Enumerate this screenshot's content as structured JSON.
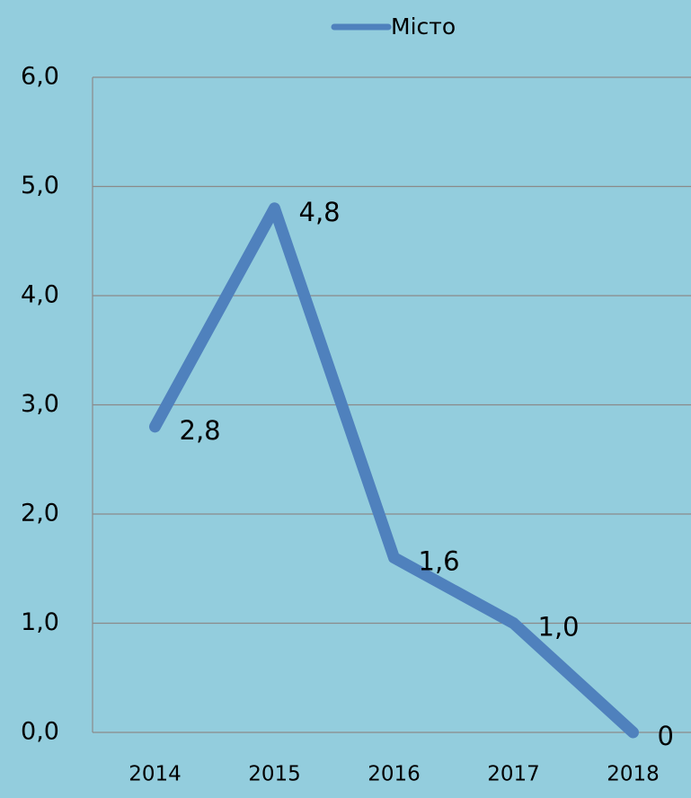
{
  "chart_data": {
    "type": "line",
    "categories": [
      "2014",
      "2015",
      "2016",
      "2017",
      "2018"
    ],
    "series": [
      {
        "name": "Місто",
        "color": "#4f81bd",
        "values": [
          2.8,
          4.8,
          1.6,
          1.0,
          0
        ],
        "value_labels": [
          "2,8",
          "4,8",
          "1,6",
          "1,0",
          "0"
        ]
      }
    ],
    "ylim": [
      0,
      6
    ],
    "yticks": [
      {
        "value": 0,
        "label": "0,0"
      },
      {
        "value": 1,
        "label": "1,0"
      },
      {
        "value": 2,
        "label": "2,0"
      },
      {
        "value": 3,
        "label": "3,0"
      },
      {
        "value": 4,
        "label": "4,0"
      },
      {
        "value": 5,
        "label": "5,0"
      },
      {
        "value": 6,
        "label": "6,0"
      }
    ],
    "grid": true,
    "legend": "top"
  }
}
